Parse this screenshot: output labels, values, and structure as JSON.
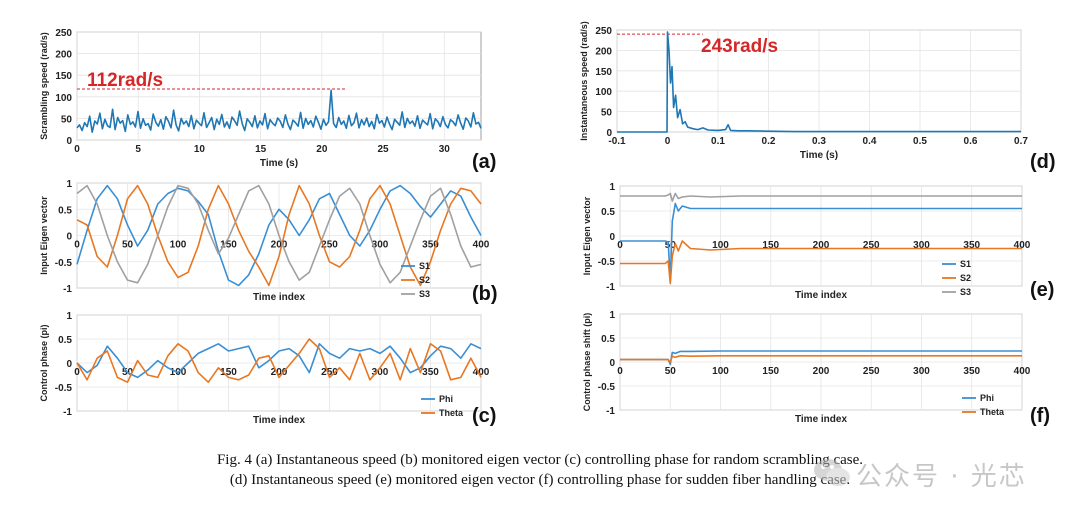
{
  "chart_data": [
    {
      "id": "a",
      "type": "line",
      "panel_label": "(a)",
      "xlabel": "Time (s)",
      "ylabel": "Scrambling speed (rad/s)",
      "xlim": [
        0,
        33
      ],
      "ylim": [
        0,
        250
      ],
      "xticks": [
        0,
        5,
        10,
        15,
        20,
        25,
        30
      ],
      "yticks": [
        0,
        50,
        100,
        150,
        200,
        250
      ],
      "annotation": "112rad/s",
      "reference_value": 118,
      "reference_x_end": 22,
      "grid": true,
      "legend": "none",
      "series": [
        {
          "color": "#1f77b4",
          "values": [
            28,
            35,
            22,
            40,
            31,
            55,
            18,
            44,
            37,
            62,
            26,
            48,
            33,
            29,
            71,
            24,
            52,
            39,
            45,
            20,
            58,
            36,
            42,
            30,
            66,
            27,
            49,
            34,
            38,
            23,
            60,
            41,
            32,
            47,
            25,
            54,
            43,
            28,
            69,
            35,
            21,
            50,
            37,
            44,
            31,
            57,
            26,
            46,
            39,
            33,
            63,
            29,
            40,
            52,
            24,
            48,
            36,
            59,
            30,
            42,
            27,
            53,
            45,
            34,
            67,
            38,
            22,
            49,
            41,
            31,
            56,
            28,
            44,
            35,
            61,
            26,
            47,
            39,
            33,
            51,
            43,
            29,
            58,
            37,
            24,
            46,
            40,
            32,
            64,
            27,
            50,
            36,
            45,
            30,
            55,
            41,
            25,
            48,
            34,
            42,
            115,
            38,
            29,
            52,
            36,
            44,
            27,
            57,
            33,
            40,
            62,
            28,
            47,
            35,
            51,
            31,
            43,
            26,
            59,
            39,
            45,
            30,
            53,
            37,
            24,
            48,
            41,
            34,
            65,
            29,
            50,
            38,
            44,
            32,
            56,
            27,
            46,
            40,
            35,
            61,
            26,
            49,
            43,
            31,
            54,
            36,
            28,
            47,
            42,
            33,
            58,
            39,
            25,
            51,
            44,
            30,
            63,
            37,
            41,
            27
          ]
        }
      ]
    },
    {
      "id": "b",
      "type": "line",
      "panel_label": "(b)",
      "xlabel": "Time index",
      "ylabel": "Input Eigen vector",
      "xlim": [
        0,
        400
      ],
      "ylim": [
        -1,
        1
      ],
      "xticks": [
        0,
        50,
        100,
        150,
        200,
        250,
        300,
        350,
        400
      ],
      "yticks": [
        -1,
        -0.5,
        0,
        0.5,
        1
      ],
      "grid": true,
      "legend": "bottom-right",
      "series": [
        {
          "name": "S1",
          "color": "#3a8fd4",
          "values": [
            -0.55,
            0.1,
            0.7,
            0.95,
            0.7,
            0.2,
            -0.2,
            0.1,
            0.6,
            0.8,
            0.9,
            0.85,
            0.65,
            0.4,
            -0.3,
            -0.85,
            -0.95,
            -0.75,
            -0.35,
            0.2,
            0.5,
            0.3,
            0.0,
            0.3,
            0.7,
            0.8,
            0.4,
            0.0,
            -0.2,
            0.1,
            0.5,
            0.85,
            0.95,
            0.8,
            0.55,
            0.35,
            0.6,
            0.85,
            0.75,
            0.35,
            0.0
          ]
        },
        {
          "name": "S2",
          "color": "#e87722",
          "values": [
            0.3,
            0.2,
            -0.4,
            -0.6,
            0.0,
            0.7,
            0.95,
            0.6,
            0.0,
            -0.5,
            -0.8,
            -0.7,
            -0.2,
            0.5,
            0.95,
            0.6,
            0.1,
            -0.3,
            -0.6,
            -0.95,
            -0.4,
            0.4,
            0.95,
            0.6,
            0.0,
            -0.5,
            -0.6,
            -0.4,
            0.1,
            0.7,
            0.95,
            0.6,
            0.0,
            -0.6,
            -0.95,
            -0.5,
            0.1,
            0.6,
            0.9,
            0.85,
            0.6
          ]
        },
        {
          "name": "S3",
          "color": "#a0a0a0",
          "values": [
            0.8,
            0.95,
            0.6,
            0.0,
            -0.5,
            -0.85,
            -0.9,
            -0.55,
            0.0,
            0.55,
            0.95,
            0.9,
            0.6,
            0.1,
            -0.35,
            -0.05,
            0.4,
            0.85,
            0.95,
            0.6,
            0.0,
            -0.5,
            -0.85,
            -0.7,
            -0.2,
            0.3,
            0.75,
            0.9,
            0.6,
            0.0,
            -0.55,
            -0.9,
            -0.7,
            -0.2,
            0.3,
            0.75,
            0.9,
            0.4,
            -0.2,
            -0.6,
            -0.55
          ]
        }
      ]
    },
    {
      "id": "c",
      "type": "line",
      "panel_label": "(c)",
      "xlabel": "Time index",
      "ylabel": "Control phase (pi)",
      "xlim": [
        0,
        400
      ],
      "ylim": [
        -1,
        1
      ],
      "xticks": [
        0,
        50,
        100,
        150,
        200,
        250,
        300,
        350,
        400
      ],
      "yticks": [
        -1,
        -0.5,
        0,
        0.5,
        1
      ],
      "grid": true,
      "legend": "bottom-right",
      "series": [
        {
          "name": "Phi",
          "color": "#3a8fd4",
          "values": [
            0.0,
            -0.2,
            -0.05,
            0.35,
            0.1,
            -0.2,
            -0.3,
            -0.15,
            0.05,
            -0.1,
            -0.2,
            0.0,
            0.2,
            0.3,
            0.4,
            0.25,
            0.3,
            0.35,
            -0.1,
            0.05,
            0.25,
            0.3,
            0.15,
            -0.2,
            0.4,
            0.2,
            0.1,
            0.3,
            0.25,
            0.3,
            0.2,
            0.35,
            0.1,
            -0.2,
            -0.1,
            0.15,
            0.35,
            0.3,
            0.1,
            0.4,
            0.3
          ]
        },
        {
          "name": "Theta",
          "color": "#e87722",
          "values": [
            0.0,
            -0.35,
            0.1,
            0.25,
            -0.3,
            -0.4,
            0.05,
            -0.25,
            -0.3,
            0.15,
            0.4,
            0.25,
            -0.2,
            -0.4,
            -0.1,
            -0.3,
            -0.35,
            -0.25,
            0.1,
            0.15,
            -0.3,
            -0.05,
            0.2,
            0.5,
            0.3,
            -0.3,
            -0.1,
            -0.35,
            0.2,
            -0.35,
            -0.1,
            0.2,
            -0.35,
            0.3,
            -0.2,
            0.4,
            0.25,
            -0.35,
            -0.3,
            0.1,
            -0.3
          ]
        }
      ]
    },
    {
      "id": "d",
      "type": "line",
      "panel_label": "(d)",
      "xlabel": "Time (s)",
      "ylabel": "Instantaneous speed (rad/s)",
      "xlim": [
        -0.1,
        0.7
      ],
      "ylim": [
        0,
        250
      ],
      "xticks": [
        -0.1,
        0,
        0.1,
        0.2,
        0.3,
        0.4,
        0.5,
        0.6,
        0.7
      ],
      "yticks": [
        0,
        50,
        100,
        150,
        200,
        250
      ],
      "annotation": "243rad/s",
      "reference_value": 240,
      "reference_x_end": 0.07,
      "grid": true,
      "legend": "none",
      "series": [
        {
          "color": "#1f77b4",
          "x": [
            -0.1,
            -0.001,
            0.0,
            0.003,
            0.006,
            0.009,
            0.012,
            0.016,
            0.02,
            0.025,
            0.03,
            0.035,
            0.04,
            0.05,
            0.06,
            0.07,
            0.08,
            0.1,
            0.115,
            0.12,
            0.125,
            0.14,
            0.16,
            0.2,
            0.25,
            0.3,
            0.4,
            0.5,
            0.6,
            0.7
          ],
          "values": [
            0,
            0,
            245,
            200,
            120,
            160,
            60,
            90,
            35,
            55,
            20,
            25,
            12,
            8,
            6,
            10,
            5,
            4,
            6,
            18,
            4,
            3,
            3,
            2,
            1,
            1,
            1,
            1,
            1,
            1
          ]
        }
      ]
    },
    {
      "id": "e",
      "type": "line",
      "panel_label": "(e)",
      "xlabel": "Time index",
      "ylabel": "Input Eigen vector",
      "xlim": [
        0,
        400
      ],
      "ylim": [
        -1,
        1
      ],
      "xticks": [
        0,
        50,
        100,
        150,
        200,
        250,
        300,
        350,
        400
      ],
      "yticks": [
        -1,
        -0.5,
        0,
        0.5,
        1
      ],
      "grid": true,
      "legend": "bottom-right",
      "series": [
        {
          "name": "S1",
          "color": "#3a8fd4",
          "x": [
            0,
            45,
            48,
            50,
            52,
            55,
            58,
            62,
            70,
            90,
            120,
            200,
            300,
            400
          ],
          "values": [
            -0.1,
            -0.1,
            -0.12,
            -0.9,
            0.3,
            0.65,
            0.5,
            0.6,
            0.55,
            0.55,
            0.55,
            0.55,
            0.55,
            0.55
          ]
        },
        {
          "name": "S2",
          "color": "#e87722",
          "x": [
            0,
            45,
            48,
            50,
            52,
            55,
            58,
            62,
            70,
            90,
            120,
            200,
            300,
            400
          ],
          "values": [
            -0.55,
            -0.55,
            -0.5,
            -0.95,
            -0.4,
            -0.15,
            -0.3,
            -0.1,
            -0.25,
            -0.28,
            -0.25,
            -0.25,
            -0.25,
            -0.25
          ]
        },
        {
          "name": "S3",
          "color": "#a0a0a0",
          "x": [
            0,
            45,
            48,
            50,
            52,
            55,
            58,
            62,
            70,
            90,
            120,
            200,
            300,
            400
          ],
          "values": [
            0.8,
            0.8,
            0.82,
            0.85,
            0.7,
            0.85,
            0.75,
            0.78,
            0.8,
            0.78,
            0.8,
            0.8,
            0.8,
            0.8
          ]
        }
      ]
    },
    {
      "id": "f",
      "type": "line",
      "panel_label": "(f)",
      "xlabel": "Time index",
      "ylabel": "Control phase shift (pi)",
      "xlim": [
        0,
        400
      ],
      "ylim": [
        -1,
        1
      ],
      "xticks": [
        0,
        50,
        100,
        150,
        200,
        250,
        300,
        350,
        400
      ],
      "yticks": [
        -1,
        -0.5,
        0,
        0.5,
        1
      ],
      "grid": true,
      "legend": "bottom-right",
      "series": [
        {
          "name": "Phi",
          "color": "#3a8fd4",
          "x": [
            0,
            48,
            50,
            52,
            55,
            60,
            70,
            100,
            200,
            300,
            400
          ],
          "values": [
            0.05,
            0.05,
            -0.05,
            0.2,
            0.18,
            0.22,
            0.22,
            0.23,
            0.23,
            0.23,
            0.23
          ]
        },
        {
          "name": "Theta",
          "color": "#e87722",
          "x": [
            0,
            48,
            50,
            52,
            55,
            60,
            70,
            100,
            200,
            300,
            400
          ],
          "values": [
            0.05,
            0.05,
            0.0,
            0.12,
            0.1,
            0.13,
            0.12,
            0.13,
            0.13,
            0.13,
            0.13
          ]
        }
      ]
    }
  ],
  "caption": {
    "line1": "Fig. 4 (a) Instantaneous speed (b) monitored eigen vector (c) controlling phase for random scrambling case.",
    "line2": "(d) Instantaneous speed (e) monitored eigen vector (f) controlling phase for sudden fiber handling case."
  },
  "watermark": {
    "text": "公众号 · 光芯",
    "icon": "wechat-icon"
  }
}
